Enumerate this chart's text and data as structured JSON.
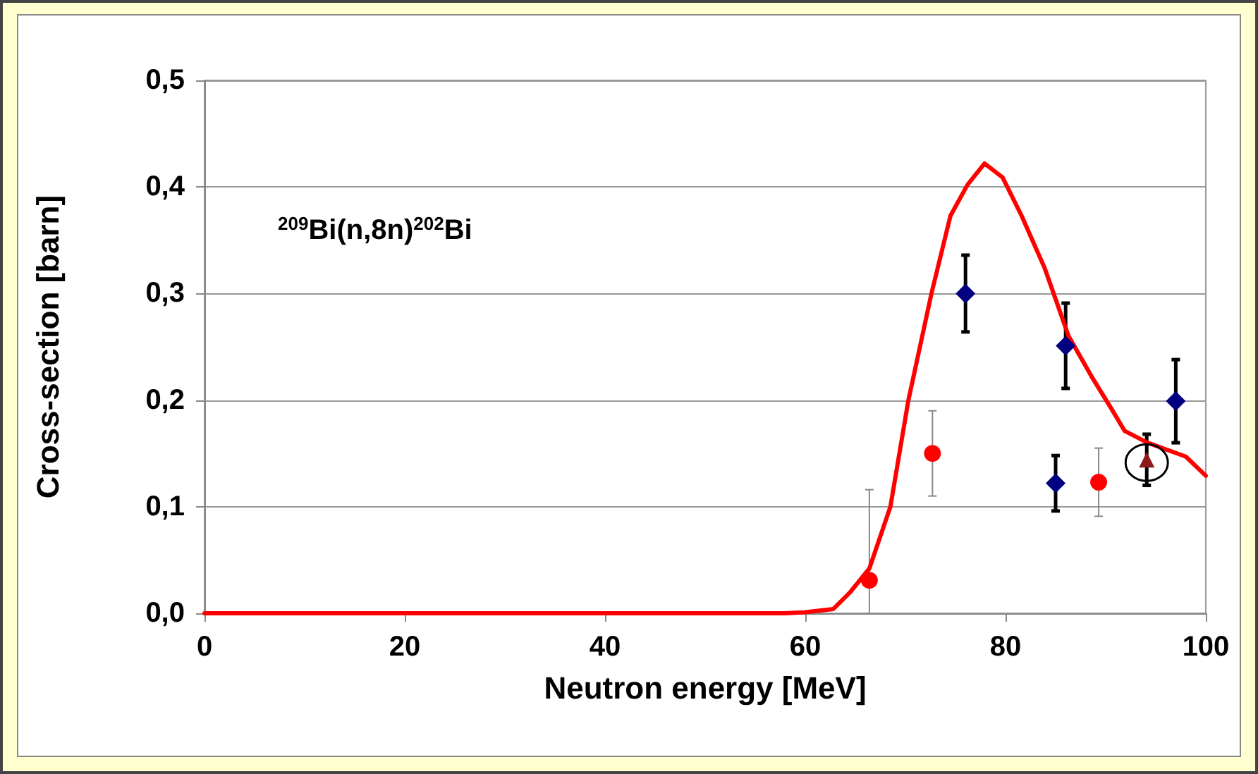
{
  "chart_data": {
    "type": "scatter",
    "xlabel": "Neutron energy [MeV]",
    "ylabel": "Cross-section [barn]",
    "annotations": [
      "$^{209}$Bi(n,8n)$^{202}$Bi"
    ],
    "xlim": [
      0,
      100
    ],
    "xticks": [
      0,
      20,
      40,
      60,
      80,
      100
    ],
    "ylim": [
      0,
      0.5
    ],
    "yticks": [
      {
        "value": 0,
        "label": "0,0"
      },
      {
        "value": 0.1,
        "label": "0,1"
      },
      {
        "value": 0.2,
        "label": "0,2"
      },
      {
        "value": 0.3,
        "label": "0,3"
      },
      {
        "value": 0.4,
        "label": "0,4"
      },
      {
        "value": 0.5,
        "label": "0,5"
      }
    ],
    "grid": "y",
    "series": [
      {
        "type": "line",
        "color": "#ff0000",
        "marker": "none",
        "line_style": "solid",
        "x": [
          0,
          58,
          60,
          62.8,
          64.5,
          66.4,
          68.5,
          70.3,
          72.6,
          74.5,
          76.2,
          77.9,
          79.7,
          81.6,
          83.9,
          86.3,
          88.6,
          90.5,
          91.9,
          94.2,
          98,
          100
        ],
        "values": [
          0,
          0,
          0.001,
          0.004,
          0.02,
          0.042,
          0.1,
          0.2,
          0.3,
          0.373,
          0.402,
          0.422,
          0.409,
          0.373,
          0.324,
          0.26,
          0.222,
          0.193,
          0.171,
          0.16,
          0.147,
          0.129
        ]
      },
      {
        "color": "#000080",
        "marker": "diamond",
        "x": [
          76,
          86,
          85,
          97
        ],
        "values": [
          0.3,
          0.251,
          0.122,
          0.199
        ],
        "errors": [
          0.036,
          0.04,
          0.026,
          0.039
        ]
      },
      {
        "color": "#ff0000",
        "marker": "circle",
        "x": [
          66.4,
          72.7,
          89.3
        ],
        "values": [
          0.031,
          0.15,
          0.123
        ],
        "errors": [
          [
            0,
            0.116
          ],
          0.04,
          0.032
        ]
      },
      {
        "color": "#8b1a1a",
        "marker": "triangle",
        "x": [
          94.1
        ],
        "values": [
          0.144
        ],
        "errors": [
          0.024
        ]
      }
    ]
  }
}
